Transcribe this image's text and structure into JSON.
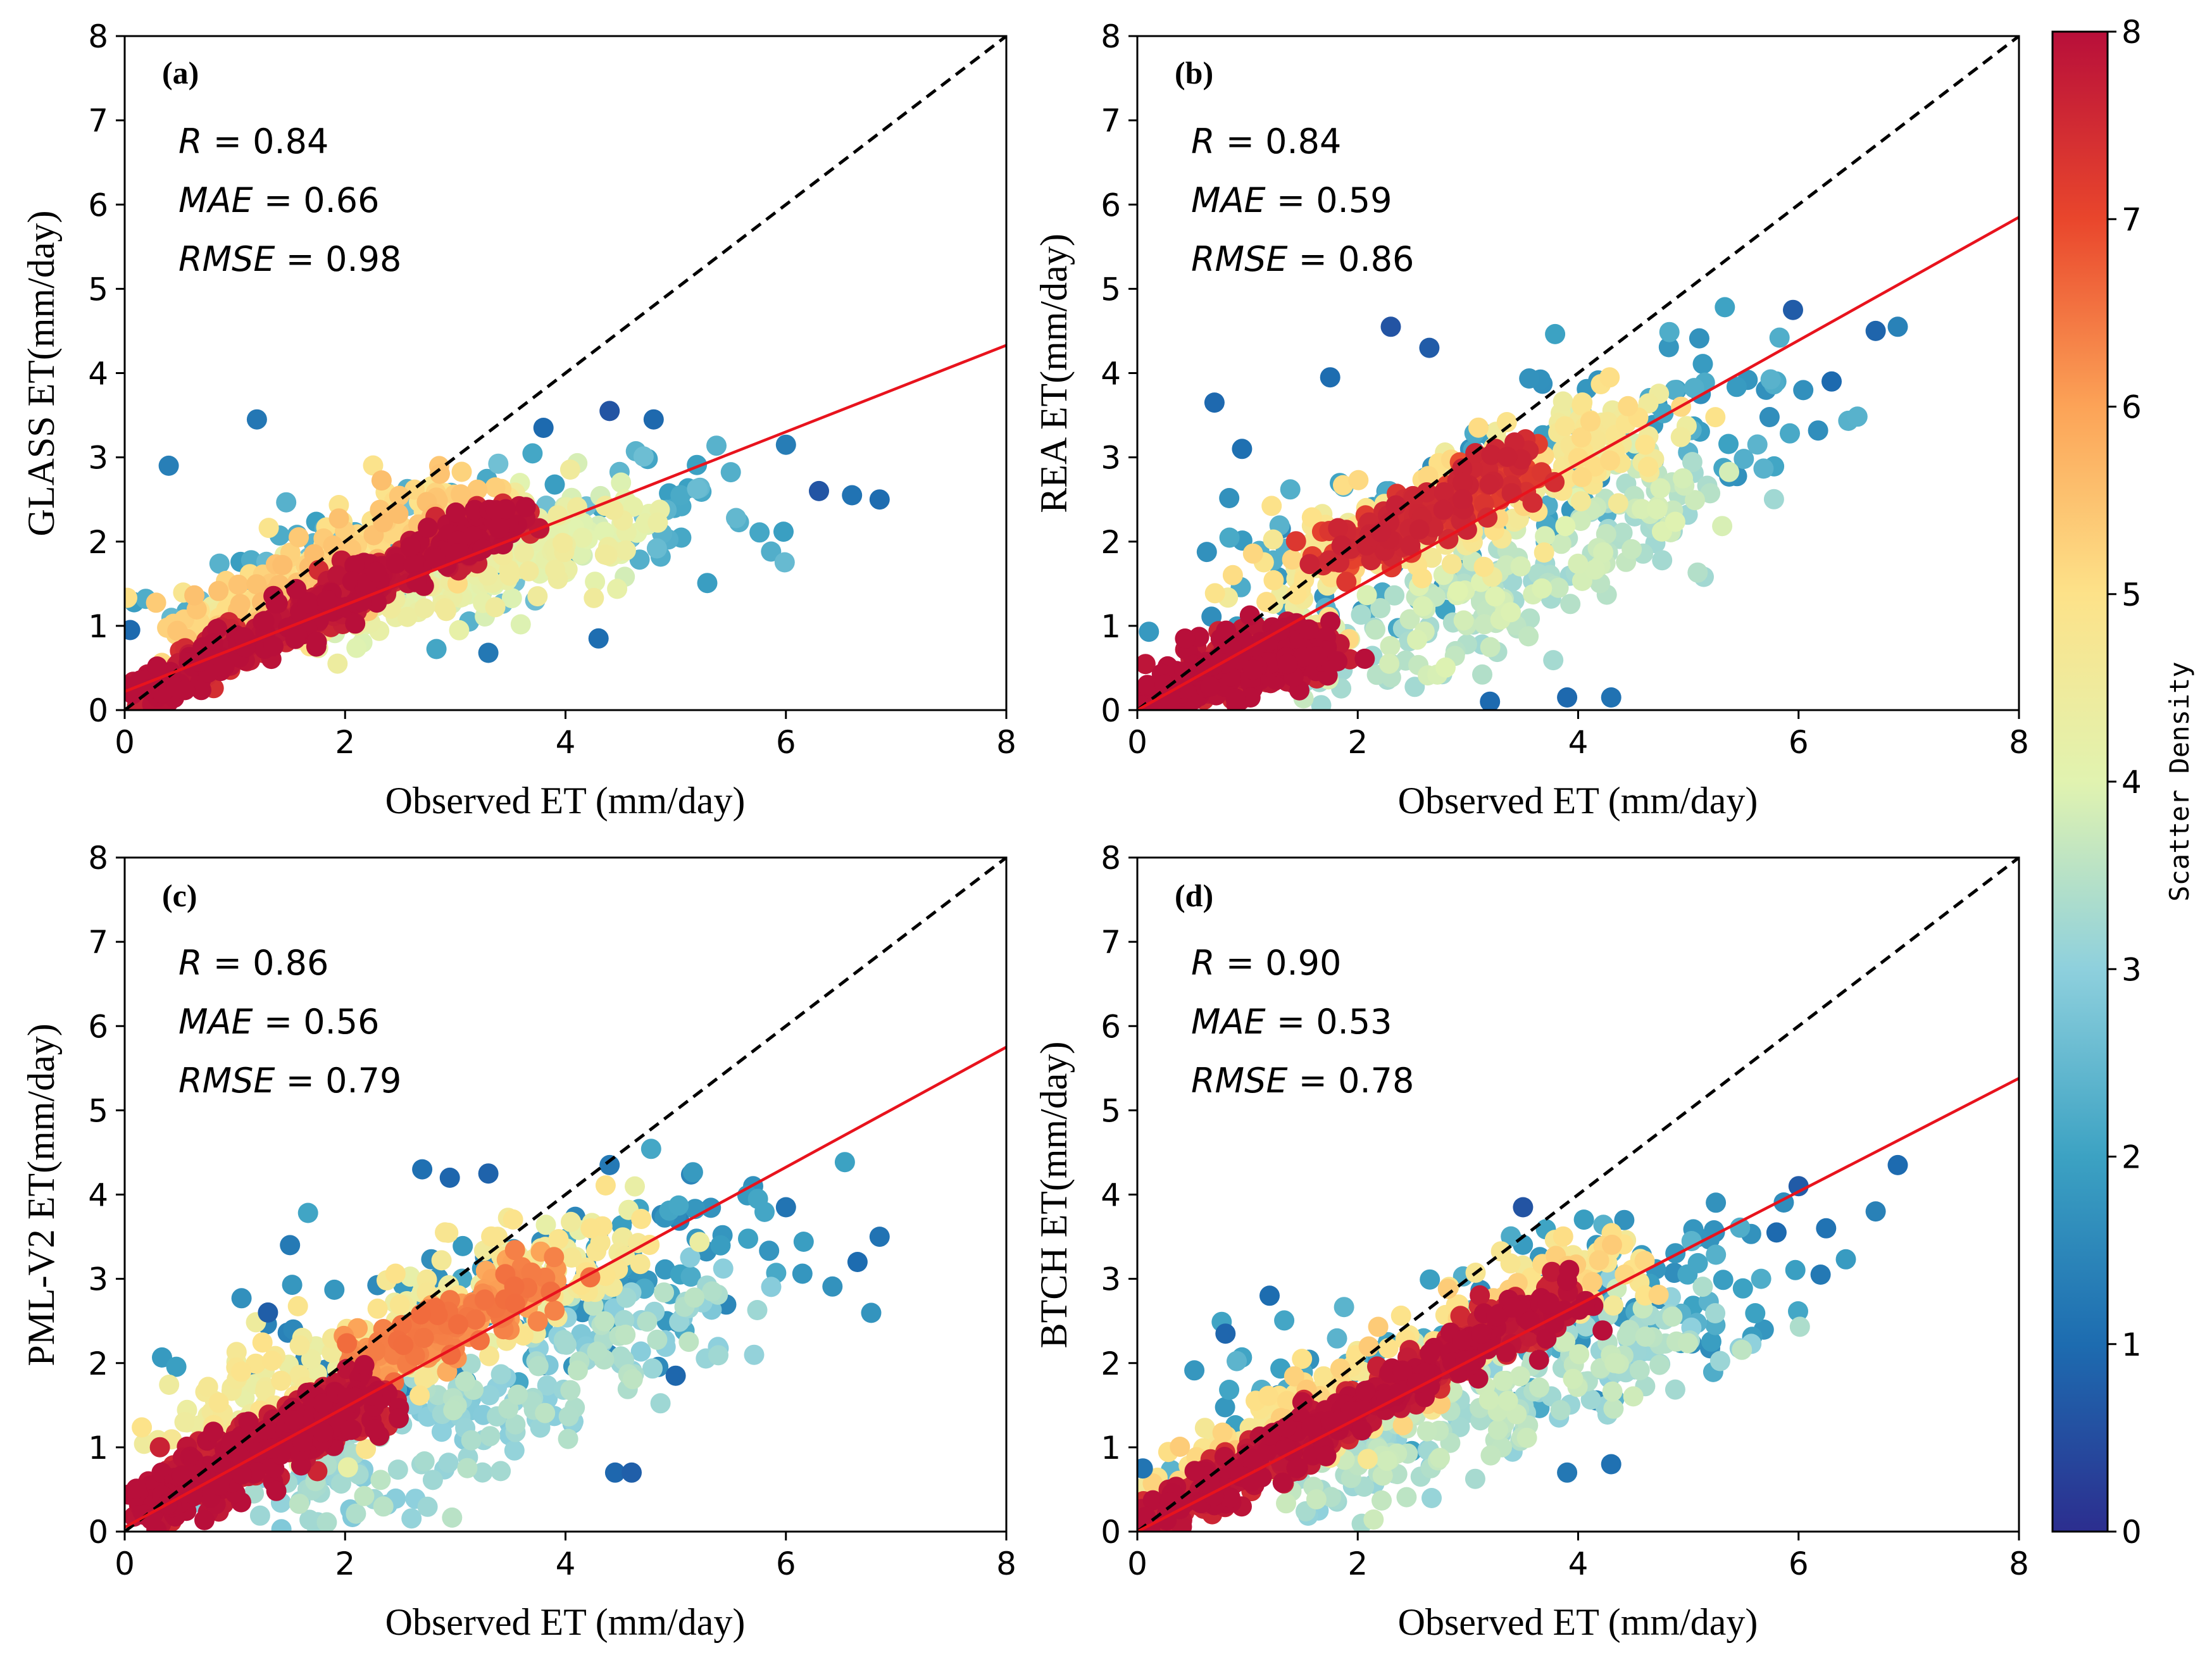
{
  "chart_data": [
    {
      "type": "scatter",
      "panel": "(a)",
      "xlabel": "Observed ET (mm/day)",
      "ylabel": "GLASS ET(mm/day)",
      "xlim": [
        0,
        8
      ],
      "ylim": [
        0,
        8
      ],
      "x_ticks": [
        "0",
        "2",
        "4",
        "6",
        "8"
      ],
      "y_ticks": [
        "0",
        "1",
        "2",
        "3",
        "4",
        "5",
        "6",
        "7",
        "8"
      ],
      "stats": [
        {
          "label": "R",
          "value": "0.84"
        },
        {
          "label": "MAE",
          "value": "0.66"
        },
        {
          "label": "RMSE",
          "value": "0.98"
        }
      ],
      "one_to_one_line": {
        "x": [
          0,
          8
        ],
        "y": [
          0,
          8
        ],
        "style": "dashed",
        "color": "#000000"
      },
      "fit_line": {
        "x": [
          0,
          8
        ],
        "y": [
          0.22,
          4.33
        ],
        "color": "#e8131d"
      },
      "density_clusters": [
        {
          "x0": 0.1,
          "y0": 0.15,
          "x1": 3.6,
          "y1": 2.35,
          "spread": 0.15,
          "density": 7.8,
          "n": 520
        },
        {
          "x0": 0.6,
          "y0": 0.8,
          "x1": 3.2,
          "y1": 2.6,
          "spread": 0.28,
          "density": 5.2,
          "n": 260
        },
        {
          "x0": 1.5,
          "y0": 1.0,
          "x1": 4.5,
          "y1": 2.2,
          "spread": 0.35,
          "density": 4.2,
          "n": 240
        },
        {
          "x0": 0.8,
          "y0": 1.4,
          "x1": 5.4,
          "y1": 2.5,
          "spread": 0.5,
          "density": 2.3,
          "n": 150
        }
      ],
      "outliers": [
        [
          1.2,
          3.45
        ],
        [
          0.4,
          2.9
        ],
        [
          4.4,
          3.55
        ],
        [
          3.8,
          3.35
        ],
        [
          4.8,
          3.45
        ],
        [
          6.0,
          3.15
        ],
        [
          6.6,
          2.55
        ],
        [
          6.85,
          2.5
        ],
        [
          6.3,
          2.6
        ],
        [
          0.05,
          0.95
        ],
        [
          4.3,
          0.85
        ],
        [
          3.3,
          0.68
        ]
      ],
      "colorbar": {
        "label": "Scatter Density",
        "range": [
          0,
          8
        ],
        "ticks": [
          "0",
          "1",
          "2",
          "3",
          "4",
          "5",
          "6",
          "7",
          "8"
        ]
      }
    },
    {
      "type": "scatter",
      "panel": "(b)",
      "xlabel": "Observed ET (mm/day)",
      "ylabel": "REA ET(mm/day)",
      "xlim": [
        0,
        8
      ],
      "ylim": [
        0,
        8
      ],
      "x_ticks": [
        "0",
        "2",
        "4",
        "6",
        "8"
      ],
      "y_ticks": [
        "0",
        "1",
        "2",
        "3",
        "4",
        "5",
        "6",
        "7",
        "8"
      ],
      "stats": [
        {
          "label": "R",
          "value": "0.84"
        },
        {
          "label": "MAE",
          "value": "0.59"
        },
        {
          "label": "RMSE",
          "value": "0.86"
        }
      ],
      "one_to_one_line": {
        "x": [
          0,
          8
        ],
        "y": [
          0,
          8
        ],
        "style": "dashed",
        "color": "#000000"
      },
      "fit_line": {
        "x": [
          0,
          8
        ],
        "y": [
          0.0,
          5.85
        ],
        "color": "#e8131d"
      },
      "density_clusters": [
        {
          "x0": 0.1,
          "y0": 0.1,
          "x1": 1.6,
          "y1": 0.8,
          "spread": 0.22,
          "density": 7.9,
          "n": 420
        },
        {
          "x0": 1.8,
          "y0": 1.8,
          "x1": 3.6,
          "y1": 3.0,
          "spread": 0.18,
          "density": 7.3,
          "n": 260
        },
        {
          "x0": 1.2,
          "y0": 1.4,
          "x1": 4.6,
          "y1": 3.5,
          "spread": 0.35,
          "density": 4.8,
          "n": 260
        },
        {
          "x0": 2.0,
          "y0": 0.4,
          "x1": 5.0,
          "y1": 2.8,
          "spread": 0.4,
          "density": 3.6,
          "n": 200
        },
        {
          "x0": 0.8,
          "y0": 1.5,
          "x1": 5.6,
          "y1": 3.6,
          "spread": 0.6,
          "density": 2.0,
          "n": 170
        }
      ],
      "outliers": [
        [
          2.3,
          4.55
        ],
        [
          2.65,
          4.3
        ],
        [
          4.3,
          0.15
        ],
        [
          5.95,
          4.75
        ],
        [
          6.7,
          4.5
        ],
        [
          6.9,
          4.55
        ],
        [
          6.3,
          3.9
        ],
        [
          0.7,
          3.65
        ],
        [
          1.75,
          3.95
        ],
        [
          0.95,
          3.1
        ],
        [
          3.2,
          0.1
        ],
        [
          3.9,
          0.15
        ]
      ],
      "colorbar": {
        "label": "Scatter Density",
        "range": [
          0,
          8
        ],
        "ticks": [
          "0",
          "1",
          "2",
          "3",
          "4",
          "5",
          "6",
          "7",
          "8"
        ]
      }
    },
    {
      "type": "scatter",
      "panel": "(c)",
      "xlabel": "Observed ET (mm/day)",
      "ylabel": "PML-V2 ET(mm/day)",
      "xlim": [
        0,
        8
      ],
      "ylim": [
        0,
        8
      ],
      "x_ticks": [
        "0",
        "2",
        "4",
        "6",
        "8"
      ],
      "y_ticks": [
        "0",
        "1",
        "2",
        "3",
        "4",
        "5",
        "6",
        "7",
        "8"
      ],
      "stats": [
        {
          "label": "R",
          "value": "0.86"
        },
        {
          "label": "MAE",
          "value": "0.56"
        },
        {
          "label": "RMSE",
          "value": "0.79"
        }
      ],
      "one_to_one_line": {
        "x": [
          0,
          8
        ],
        "y": [
          0,
          8
        ],
        "style": "dashed",
        "color": "#000000"
      },
      "fit_line": {
        "x": [
          0,
          8
        ],
        "y": [
          0.05,
          5.75
        ],
        "color": "#e8131d"
      },
      "density_clusters": [
        {
          "x0": 0.1,
          "y0": 0.2,
          "x1": 2.2,
          "y1": 1.6,
          "spread": 0.2,
          "density": 7.9,
          "n": 520
        },
        {
          "x0": 2.2,
          "y0": 2.0,
          "x1": 3.8,
          "y1": 3.0,
          "spread": 0.2,
          "density": 6.2,
          "n": 180
        },
        {
          "x0": 0.5,
          "y0": 1.0,
          "x1": 4.6,
          "y1": 3.6,
          "spread": 0.38,
          "density": 4.6,
          "n": 260
        },
        {
          "x0": 1.5,
          "y0": 0.3,
          "x1": 5.2,
          "y1": 2.8,
          "spread": 0.45,
          "density": 3.2,
          "n": 220
        },
        {
          "x0": 1.2,
          "y0": 1.8,
          "x1": 5.8,
          "y1": 3.6,
          "spread": 0.6,
          "density": 1.8,
          "n": 150
        }
      ],
      "outliers": [
        [
          2.7,
          4.3
        ],
        [
          2.95,
          4.2
        ],
        [
          3.3,
          4.25
        ],
        [
          4.4,
          4.35
        ],
        [
          6.85,
          3.5
        ],
        [
          6.65,
          3.2
        ],
        [
          6.0,
          3.85
        ],
        [
          4.45,
          0.7
        ],
        [
          4.6,
          0.7
        ],
        [
          5.0,
          1.85
        ],
        [
          1.3,
          2.6
        ],
        [
          1.5,
          3.4
        ]
      ],
      "colorbar": {
        "label": "Scatter Density",
        "range": [
          0,
          8
        ],
        "ticks": [
          "0",
          "1",
          "2",
          "3",
          "4",
          "5",
          "6",
          "7",
          "8"
        ]
      }
    },
    {
      "type": "scatter",
      "panel": "(d)",
      "xlabel": "Observed ET (mm/day)",
      "ylabel": "BTCH ET(mm/day)",
      "xlim": [
        0,
        8
      ],
      "ylim": [
        0,
        8
      ],
      "x_ticks": [
        "0",
        "2",
        "4",
        "6",
        "8"
      ],
      "y_ticks": [
        "0",
        "1",
        "2",
        "3",
        "4",
        "5",
        "6",
        "7",
        "8"
      ],
      "stats": [
        {
          "label": "R",
          "value": "0.90"
        },
        {
          "label": "MAE",
          "value": "0.53"
        },
        {
          "label": "RMSE",
          "value": "0.78"
        }
      ],
      "one_to_one_line": {
        "x": [
          0,
          8
        ],
        "y": [
          0,
          8
        ],
        "style": "dashed",
        "color": "#000000"
      },
      "fit_line": {
        "x": [
          0,
          8
        ],
        "y": [
          0.0,
          5.38
        ],
        "color": "#e8131d"
      },
      "density_clusters": [
        {
          "x0": 0.1,
          "y0": 0.1,
          "x1": 3.9,
          "y1": 2.8,
          "spread": 0.17,
          "density": 7.8,
          "n": 560
        },
        {
          "x0": 0.5,
          "y0": 0.6,
          "x1": 4.4,
          "y1": 3.3,
          "spread": 0.3,
          "density": 5.0,
          "n": 260
        },
        {
          "x0": 1.5,
          "y0": 0.5,
          "x1": 5.0,
          "y1": 2.5,
          "spread": 0.4,
          "density": 3.4,
          "n": 220
        },
        {
          "x0": 0.8,
          "y0": 1.2,
          "x1": 5.6,
          "y1": 3.2,
          "spread": 0.55,
          "density": 2.0,
          "n": 150
        }
      ],
      "outliers": [
        [
          1.2,
          2.8
        ],
        [
          0.8,
          2.35
        ],
        [
          6.0,
          4.1
        ],
        [
          6.9,
          4.35
        ],
        [
          6.7,
          3.8
        ],
        [
          6.25,
          3.6
        ],
        [
          6.2,
          3.05
        ],
        [
          5.8,
          3.55
        ],
        [
          4.3,
          0.8
        ],
        [
          3.9,
          0.7
        ],
        [
          3.5,
          3.85
        ],
        [
          0.05,
          0.75
        ]
      ],
      "colorbar": {
        "label": "Scatter Density",
        "range": [
          0,
          8
        ],
        "ticks": [
          "0",
          "1",
          "2",
          "3",
          "4",
          "5",
          "6",
          "7",
          "8"
        ]
      }
    }
  ],
  "colorbar": {
    "label": "Scatter Density",
    "range": [
      0,
      8
    ],
    "ticks": [
      "0",
      "1",
      "2",
      "3",
      "4",
      "5",
      "6",
      "7",
      "8"
    ],
    "colormap": [
      "#2c2e8f",
      "#1d6cb0",
      "#3ca2c3",
      "#8ed0dd",
      "#e1f3b0",
      "#fde289",
      "#fca357",
      "#e9462c",
      "#b80f3a"
    ]
  }
}
